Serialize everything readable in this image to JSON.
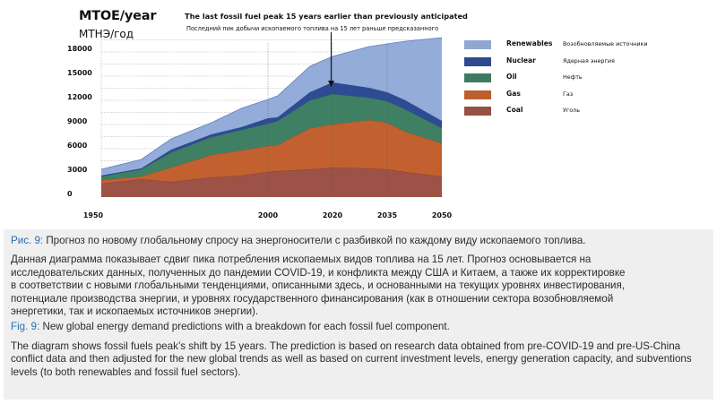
{
  "header": {
    "unit_en": "MTOE/year",
    "unit_ru": "МТНЭ/год",
    "title_en": "The last fossil fuel peak 15  years earlier than previously anticipated",
    "title_ru": "Последний пик добычи ископаемого топлива на 15 лет раньше предсказанного"
  },
  "legend": [
    {
      "label_en": "Renewables",
      "label_ru": "Возобновляемые источники",
      "color": "#94acd9"
    },
    {
      "label_en": "Nuclear",
      "label_ru": "Ядерная энергия",
      "color": "#2e4c94"
    },
    {
      "label_en": "Oil",
      "label_ru": "Нефть",
      "color": "#3f8064"
    },
    {
      "label_en": "Gas",
      "label_ru": "Газ",
      "color": "#c2612f"
    },
    {
      "label_en": "Coal",
      "label_ru": "Уголь",
      "color": "#9c5246"
    }
  ],
  "chart_data": {
    "type": "area",
    "stacked": true,
    "title": "The last fossil fuel peak 15  years earlier than previously anticipated",
    "subtitle": "Последний пик добычи ископаемого топлива на 15 лет раньше предсказанного",
    "ylabel": "MTOE/year / МТНЭ/год",
    "xlabel": "",
    "ylim": [
      0,
      18000
    ],
    "yticks": [
      0,
      3000,
      6000,
      9000,
      12000,
      15000,
      18000
    ],
    "ytick_labels": [
      "0",
      "3000",
      "6000",
      "9000",
      "12000",
      "15000",
      "18000"
    ],
    "xticks": [
      1950,
      2000,
      2020,
      2035,
      2050
    ],
    "xtick_labels": [
      "1950",
      "2000",
      "2020",
      "2035",
      "2050"
    ],
    "grid": true,
    "legend_position": "right",
    "x": [
      1950,
      1962,
      1971,
      1983,
      1992,
      2000,
      2003,
      2013,
      2020,
      2030,
      2035,
      2040,
      2050
    ],
    "series": [
      {
        "name": "Coal",
        "color": "#9c5246",
        "values": [
          1670,
          2220,
          1890,
          2440,
          2670,
          3110,
          3220,
          3440,
          3670,
          3560,
          3440,
          3110,
          2560
        ]
      },
      {
        "name": "Gas",
        "color": "#c2612f",
        "values": [
          440,
          340,
          1780,
          2780,
          3110,
          3220,
          3220,
          5120,
          5330,
          6000,
          5780,
          5000,
          4110
        ]
      },
      {
        "name": "Oil",
        "color": "#3f8064",
        "values": [
          450,
          880,
          1890,
          2220,
          2550,
          2780,
          3000,
          3440,
          3780,
          2770,
          2670,
          2780,
          1890
        ]
      },
      {
        "name": "Nuclear",
        "color": "#2e4c94",
        "values": [
          110,
          120,
          330,
          340,
          340,
          670,
          450,
          1000,
          1440,
          1230,
          1110,
          1110,
          880
        ]
      },
      {
        "name": "Renewables",
        "color": "#94acd9",
        "values": [
          770,
          1110,
          1330,
          1440,
          2330,
          2330,
          2670,
          3220,
          3220,
          5110,
          6000,
          7330,
          10340
        ]
      }
    ],
    "annotations": [
      {
        "type": "arrow",
        "x": 2020,
        "text": "The last fossil fuel peak 15  years earlier than previously anticipated"
      }
    ]
  },
  "caption": {
    "ru_fig_label": "Рис. 9:",
    "ru_fig_title": " Прогноз по новому глобальному спросу на энергоносители с разбивкой по каждому виду ископаемого топлива.",
    "ru_body_lines": [
      "Данная диаграмма показывает сдвиг пика потребления ископаемых видов топлива на 15 лет. Прогноз основывается на",
      "исследовательских данных, полученных до пандемии COVID-19, и конфликта между США и Китаем, а также их корректировке",
      "в соответствии с новыми глобальными тенденциями, описанными здесь, и основанными на текущих уровнях инвестирования,",
      "потенциале производства энергии, и уровнях государственного финансирования (как в отношении сектора возобновляемой",
      "энергетики, так и ископаемых источников энергии)."
    ],
    "en_fig_label": "Fig. 9:",
    "en_fig_title": " New global energy demand predictions with a breakdown for each fossil fuel component.",
    "en_body_lines": [
      "The diagram shows fossil fuels peak’s shift by 15 years. The prediction is based on research data obtained from pre-COVID-19 and pre-US-China",
      "conflict data and then adjusted for the new global trends as well as based on current investment levels, energy generation capacity, and subventions",
      "levels (to both renewables and fossil fuel sectors)."
    ]
  }
}
